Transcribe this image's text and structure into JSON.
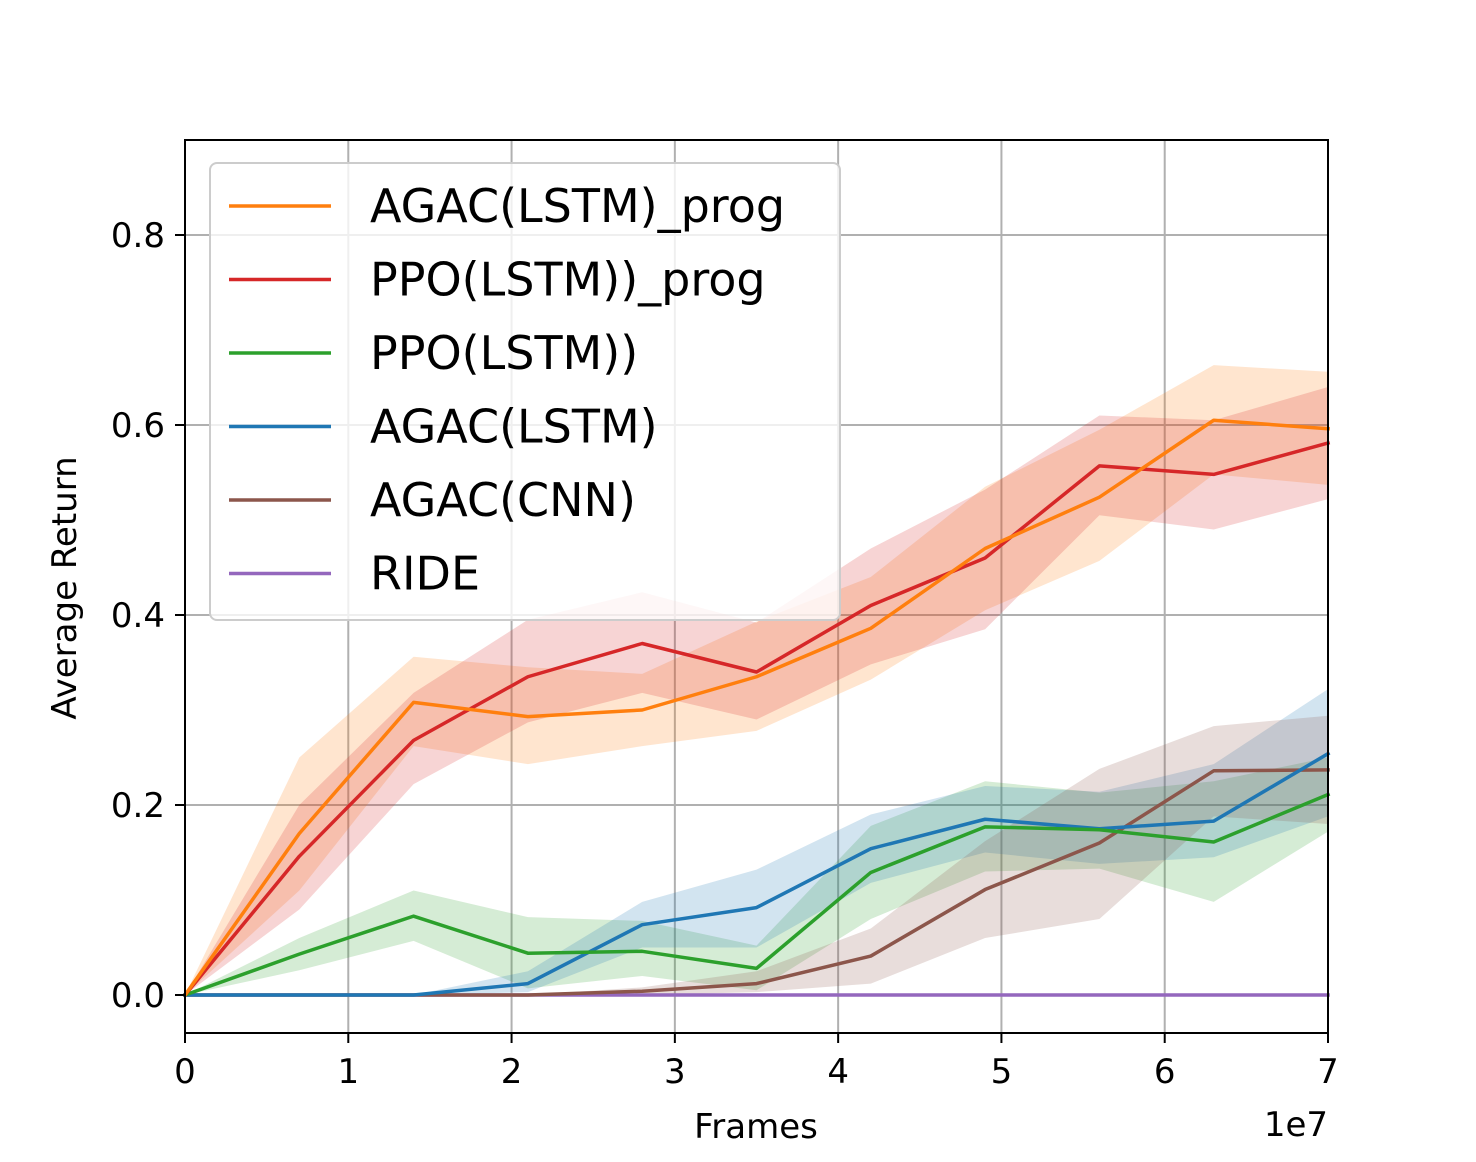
{
  "chart_data": {
    "type": "line",
    "title": "",
    "xlabel": "Frames",
    "ylabel": "Average Return",
    "x_offset_label": "1e7",
    "xlim": [
      0,
      7
    ],
    "ylim": [
      -0.04,
      0.9
    ],
    "xticks": [
      0,
      1,
      2,
      3,
      4,
      5,
      6,
      7
    ],
    "xtick_labels": [
      "0",
      "1",
      "2",
      "3",
      "4",
      "5",
      "6",
      "7"
    ],
    "yticks": [
      0.0,
      0.2,
      0.4,
      0.6,
      0.8
    ],
    "ytick_labels": [
      "0.0",
      "0.2",
      "0.4",
      "0.6",
      "0.8"
    ],
    "grid": true,
    "legend_position": "upper-left",
    "x": [
      0,
      0.7,
      1.4,
      2.1,
      2.8,
      3.5,
      4.2,
      4.9,
      5.6,
      6.3,
      7.0
    ],
    "series": [
      {
        "name": "AGAC(LSTM)_prog",
        "color": "#ff7f0e",
        "values": [
          0.0,
          0.17,
          0.308,
          0.293,
          0.3,
          0.335,
          0.386,
          0.47,
          0.524,
          0.605,
          0.596
        ],
        "lower": [
          0.0,
          0.11,
          0.262,
          0.243,
          0.262,
          0.278,
          0.332,
          0.405,
          0.457,
          0.548,
          0.537
        ],
        "upper": [
          0.0,
          0.25,
          0.356,
          0.345,
          0.338,
          0.393,
          0.44,
          0.535,
          0.595,
          0.663,
          0.656
        ]
      },
      {
        "name": "PPO(LSTM))_prog",
        "color": "#d62728",
        "values": [
          0.0,
          0.146,
          0.268,
          0.335,
          0.37,
          0.34,
          0.41,
          0.46,
          0.557,
          0.548,
          0.581
        ],
        "lower": [
          0.0,
          0.09,
          0.222,
          0.287,
          0.318,
          0.29,
          0.348,
          0.385,
          0.505,
          0.49,
          0.522
        ],
        "upper": [
          0.0,
          0.2,
          0.318,
          0.395,
          0.424,
          0.392,
          0.47,
          0.532,
          0.61,
          0.605,
          0.64
        ]
      },
      {
        "name": "PPO(LSTM))",
        "color": "#2ca02c",
        "values": [
          0.0,
          0.043,
          0.083,
          0.044,
          0.046,
          0.028,
          0.129,
          0.177,
          0.174,
          0.161,
          0.211
        ],
        "lower": [
          0.0,
          0.026,
          0.057,
          0.007,
          0.02,
          0.005,
          0.08,
          0.13,
          0.133,
          0.098,
          0.172
        ],
        "upper": [
          0.0,
          0.06,
          0.11,
          0.082,
          0.078,
          0.052,
          0.178,
          0.225,
          0.213,
          0.225,
          0.25
        ]
      },
      {
        "name": "AGAC(LSTM)",
        "color": "#1f77b4",
        "values": [
          0.0,
          0.0,
          0.0,
          0.012,
          0.074,
          0.092,
          0.154,
          0.185,
          0.175,
          0.183,
          0.254
        ],
        "lower": [
          0.0,
          0.0,
          0.0,
          0.003,
          0.05,
          0.05,
          0.118,
          0.15,
          0.138,
          0.145,
          0.188
        ],
        "upper": [
          0.0,
          0.0,
          0.0,
          0.025,
          0.098,
          0.132,
          0.19,
          0.22,
          0.214,
          0.243,
          0.322
        ]
      },
      {
        "name": "AGAC(CNN)",
        "color": "#8c564b",
        "values": [
          0.0,
          0.0,
          0.0,
          0.0,
          0.004,
          0.012,
          0.041,
          0.111,
          0.16,
          0.236,
          0.237
        ],
        "lower": [
          0.0,
          0.0,
          0.0,
          0.0,
          0.0,
          0.003,
          0.012,
          0.06,
          0.08,
          0.188,
          0.18
        ],
        "upper": [
          0.0,
          0.0,
          0.0,
          0.0,
          0.008,
          0.025,
          0.07,
          0.162,
          0.238,
          0.283,
          0.294
        ]
      },
      {
        "name": "RIDE",
        "color": "#9467bd",
        "values": [
          0.0,
          0.0,
          0.0,
          0.0,
          0.0,
          0.0,
          0.0,
          0.0,
          0.0,
          0.0,
          0.0
        ],
        "lower": [
          0.0,
          0.0,
          0.0,
          0.0,
          0.0,
          0.0,
          0.0,
          0.0,
          0.0,
          0.0,
          0.0
        ],
        "upper": [
          0.0,
          0.0,
          0.0,
          0.0,
          0.0,
          0.0,
          0.0,
          0.0,
          0.0,
          0.0,
          0.0
        ]
      }
    ]
  }
}
